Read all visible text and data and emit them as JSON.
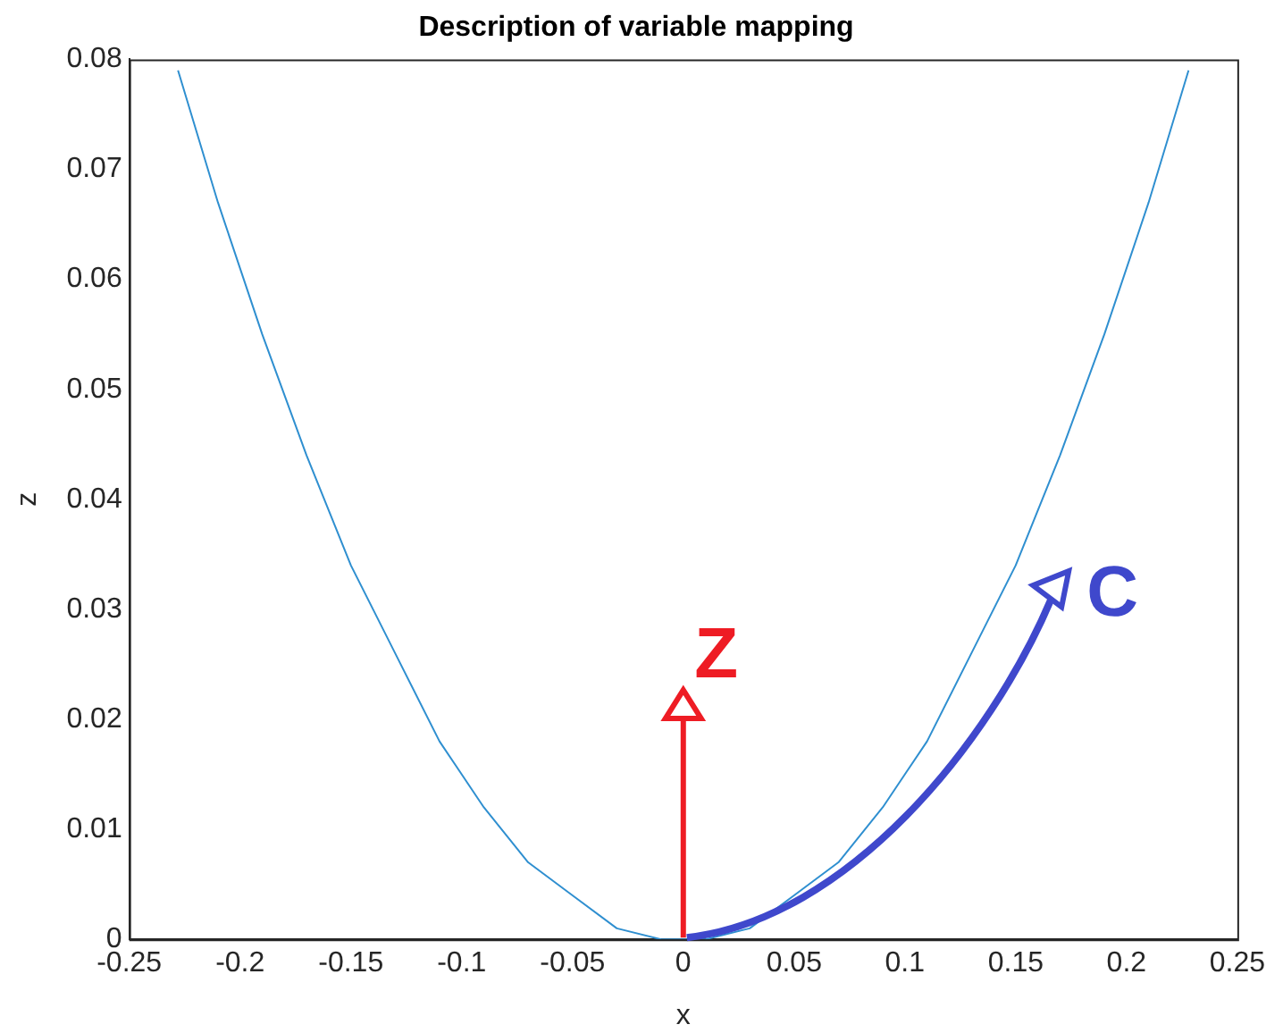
{
  "chart_data": {
    "type": "line",
    "title": "Description of variable mapping",
    "xlabel": "x",
    "ylabel": "z",
    "x": [
      -0.228,
      -0.21,
      -0.19,
      -0.17,
      -0.15,
      -0.13,
      -0.11,
      -0.09,
      -0.07,
      -0.05,
      -0.03,
      -0.01,
      0,
      0.01,
      0.03,
      0.05,
      0.07,
      0.09,
      0.11,
      0.13,
      0.15,
      0.17,
      0.19,
      0.21,
      0.228
    ],
    "series": [
      {
        "color": "#2f8fd0",
        "values": [
          0.079,
          0.067,
          0.055,
          0.044,
          0.034,
          0.026,
          0.018,
          0.012,
          0.007,
          0.004,
          0.001,
          0,
          0,
          0,
          0.001,
          0.004,
          0.007,
          0.012,
          0.018,
          0.026,
          0.034,
          0.044,
          0.055,
          0.067,
          0.079
        ]
      }
    ],
    "xlim": [
      -0.25,
      0.25
    ],
    "xticks": [
      -0.25,
      -0.2,
      -0.15,
      -0.1,
      -0.05,
      0,
      0.05,
      0.1,
      0.15,
      0.2,
      0.25
    ],
    "ylim": [
      0,
      0.08
    ],
    "yticks": [
      0,
      0.01,
      0.02,
      0.03,
      0.04,
      0.05,
      0.06,
      0.07,
      0.08
    ],
    "grid": false,
    "marker": "none",
    "line_style": "solid",
    "annotations": [
      {
        "text": "Z",
        "x": 0,
        "y": 0
      },
      {
        "text": "C",
        "x": 0,
        "y": 0
      }
    ]
  }
}
